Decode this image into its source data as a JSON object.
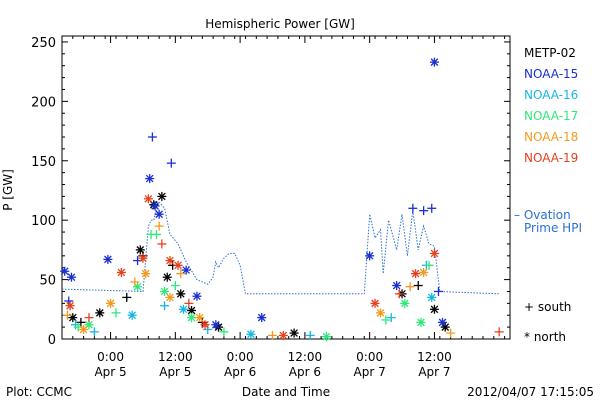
{
  "chart_data": {
    "type": "scatter",
    "title": "Hemispheric Power [GW]",
    "ylabel": "P [GW]",
    "xlabel": "Date and Time",
    "ylim": [
      0,
      255
    ],
    "xlim": [
      "2012-04-04T15:00",
      "2012-04-08T02:00"
    ],
    "yticks": [
      0,
      50,
      100,
      150,
      200,
      250
    ],
    "xticks": [
      {
        "t": "2012-04-05T00:00",
        "time": "0:00",
        "date": "Apr 5"
      },
      {
        "t": "2012-04-05T12:00",
        "time": "12:00",
        "date": "Apr 5"
      },
      {
        "t": "2012-04-06T00:00",
        "time": "0:00",
        "date": "Apr 6"
      },
      {
        "t": "2012-04-06T12:00",
        "time": "12:00",
        "date": "Apr 6"
      },
      {
        "t": "2012-04-07T00:00",
        "time": "0:00",
        "date": "Apr 7"
      },
      {
        "t": "2012-04-07T12:00",
        "time": "12:00",
        "date": "Apr 7"
      }
    ],
    "legend": [
      {
        "name": "METP-02",
        "color": "#000000"
      },
      {
        "name": "NOAA-15",
        "color": "#1a2fd0"
      },
      {
        "name": "NOAA-16",
        "color": "#14b8e0"
      },
      {
        "name": "NOAA-17",
        "color": "#2ee87a"
      },
      {
        "name": "NOAA-18",
        "color": "#f39a1e"
      },
      {
        "name": "NOAA-19",
        "color": "#e8401c"
      }
    ],
    "ovation_label": "– Ovation Prime HPI",
    "ovation_color": "#2b6fd6",
    "markers": [
      {
        "symbol": "+",
        "meaning": "south"
      },
      {
        "symbol": "*",
        "meaning": "north"
      }
    ],
    "ovation": [
      {
        "t": "2012-04-04T15:00",
        "y": 42
      },
      {
        "t": "2012-04-05T06:00",
        "y": 40
      },
      {
        "t": "2012-04-05T07:00",
        "y": 95
      },
      {
        "t": "2012-04-05T07:30",
        "y": 100
      },
      {
        "t": "2012-04-05T08:00",
        "y": 100
      },
      {
        "t": "2012-04-05T08:30",
        "y": 110
      },
      {
        "t": "2012-04-05T09:00",
        "y": 115
      },
      {
        "t": "2012-04-05T10:00",
        "y": 110
      },
      {
        "t": "2012-04-05T11:00",
        "y": 88
      },
      {
        "t": "2012-04-05T12:30",
        "y": 80
      },
      {
        "t": "2012-04-05T14:00",
        "y": 65
      },
      {
        "t": "2012-04-05T16:00",
        "y": 50
      },
      {
        "t": "2012-04-05T18:00",
        "y": 46
      },
      {
        "t": "2012-04-05T19:00",
        "y": 52
      },
      {
        "t": "2012-04-05T19:30",
        "y": 65
      },
      {
        "t": "2012-04-05T20:00",
        "y": 60
      },
      {
        "t": "2012-04-05T21:00",
        "y": 68
      },
      {
        "t": "2012-04-05T22:00",
        "y": 72
      },
      {
        "t": "2012-04-05T23:00",
        "y": 72
      },
      {
        "t": "2012-04-06T00:00",
        "y": 62
      },
      {
        "t": "2012-04-06T00:30",
        "y": 50
      },
      {
        "t": "2012-04-06T01:00",
        "y": 38
      },
      {
        "t": "2012-04-06T23:00",
        "y": 38
      },
      {
        "t": "2012-04-07T00:00",
        "y": 105
      },
      {
        "t": "2012-04-07T01:00",
        "y": 85
      },
      {
        "t": "2012-04-07T02:00",
        "y": 92
      },
      {
        "t": "2012-04-07T02:30",
        "y": 55
      },
      {
        "t": "2012-04-07T03:30",
        "y": 100
      },
      {
        "t": "2012-04-07T05:00",
        "y": 75
      },
      {
        "t": "2012-04-07T06:00",
        "y": 105
      },
      {
        "t": "2012-04-07T07:00",
        "y": 70
      },
      {
        "t": "2012-04-07T08:00",
        "y": 108
      },
      {
        "t": "2012-04-07T09:00",
        "y": 75
      },
      {
        "t": "2012-04-07T10:00",
        "y": 95
      },
      {
        "t": "2012-04-07T11:00",
        "y": 80
      },
      {
        "t": "2012-04-07T12:00",
        "y": 78
      },
      {
        "t": "2012-04-07T13:00",
        "y": 40
      },
      {
        "t": "2012-04-08T00:00",
        "y": 38
      }
    ],
    "points": [
      {
        "sat": "METP-02",
        "m": "*",
        "t": "2012-04-04T17:00",
        "y": 18
      },
      {
        "sat": "METP-02",
        "m": "+",
        "t": "2012-04-04T18:30",
        "y": 14
      },
      {
        "sat": "METP-02",
        "m": "*",
        "t": "2012-04-04T22:00",
        "y": 22
      },
      {
        "sat": "METP-02",
        "m": "+",
        "t": "2012-04-05T03:00",
        "y": 35
      },
      {
        "sat": "METP-02",
        "m": "*",
        "t": "2012-04-05T05:30",
        "y": 75
      },
      {
        "sat": "METP-02",
        "m": "+",
        "t": "2012-04-05T06:00",
        "y": 70
      },
      {
        "sat": "METP-02",
        "m": "*",
        "t": "2012-04-05T08:00",
        "y": 113
      },
      {
        "sat": "METP-02",
        "m": "*",
        "t": "2012-04-05T09:30",
        "y": 120
      },
      {
        "sat": "METP-02",
        "m": "*",
        "t": "2012-04-05T10:30",
        "y": 52
      },
      {
        "sat": "METP-02",
        "m": "+",
        "t": "2012-04-05T11:30",
        "y": 62
      },
      {
        "sat": "METP-02",
        "m": "*",
        "t": "2012-04-05T13:00",
        "y": 38
      },
      {
        "sat": "METP-02",
        "m": "*",
        "t": "2012-04-05T15:00",
        "y": 24
      },
      {
        "sat": "METP-02",
        "m": "+",
        "t": "2012-04-05T17:00",
        "y": 14
      },
      {
        "sat": "METP-02",
        "m": "*",
        "t": "2012-04-05T20:00",
        "y": 10
      },
      {
        "sat": "METP-02",
        "m": "*",
        "t": "2012-04-06T10:00",
        "y": 5
      },
      {
        "sat": "METP-02",
        "m": "*",
        "t": "2012-04-07T06:00",
        "y": 38
      },
      {
        "sat": "METP-02",
        "m": "+",
        "t": "2012-04-07T09:00",
        "y": 45
      },
      {
        "sat": "METP-02",
        "m": "*",
        "t": "2012-04-07T12:00",
        "y": 25
      },
      {
        "sat": "METP-02",
        "m": "*",
        "t": "2012-04-07T14:00",
        "y": 10
      },
      {
        "sat": "NOAA-15",
        "m": "*",
        "t": "2012-04-04T15:30",
        "y": 57
      },
      {
        "sat": "NOAA-15",
        "m": "*",
        "t": "2012-04-04T16:45",
        "y": 52
      },
      {
        "sat": "NOAA-15",
        "m": "+",
        "t": "2012-04-04T16:15",
        "y": 32
      },
      {
        "sat": "NOAA-15",
        "m": "*",
        "t": "2012-04-04T23:30",
        "y": 67
      },
      {
        "sat": "NOAA-15",
        "m": "+",
        "t": "2012-04-05T05:00",
        "y": 66
      },
      {
        "sat": "NOAA-15",
        "m": "*",
        "t": "2012-04-05T07:15",
        "y": 135
      },
      {
        "sat": "NOAA-15",
        "m": "+",
        "t": "2012-04-05T07:45",
        "y": 170
      },
      {
        "sat": "NOAA-15",
        "m": "*",
        "t": "2012-04-05T08:15",
        "y": 112
      },
      {
        "sat": "NOAA-15",
        "m": "*",
        "t": "2012-04-05T09:00",
        "y": 105
      },
      {
        "sat": "NOAA-15",
        "m": "+",
        "t": "2012-04-05T11:15",
        "y": 148
      },
      {
        "sat": "NOAA-15",
        "m": "*",
        "t": "2012-04-05T14:00",
        "y": 58
      },
      {
        "sat": "NOAA-15",
        "m": "*",
        "t": "2012-04-05T16:00",
        "y": 36
      },
      {
        "sat": "NOAA-15",
        "m": "*",
        "t": "2012-04-05T19:30",
        "y": 12
      },
      {
        "sat": "NOAA-15",
        "m": "*",
        "t": "2012-04-06T04:00",
        "y": 18
      },
      {
        "sat": "NOAA-15",
        "m": "*",
        "t": "2012-04-07T00:00",
        "y": 70
      },
      {
        "sat": "NOAA-15",
        "m": "*",
        "t": "2012-04-07T05:00",
        "y": 45
      },
      {
        "sat": "NOAA-15",
        "m": "+",
        "t": "2012-04-07T08:00",
        "y": 110
      },
      {
        "sat": "NOAA-15",
        "m": "+",
        "t": "2012-04-07T10:00",
        "y": 108
      },
      {
        "sat": "NOAA-15",
        "m": "+",
        "t": "2012-04-07T11:30",
        "y": 110
      },
      {
        "sat": "NOAA-15",
        "m": "*",
        "t": "2012-04-07T12:00",
        "y": 233
      },
      {
        "sat": "NOAA-15",
        "m": "+",
        "t": "2012-04-07T12:45",
        "y": 40
      },
      {
        "sat": "NOAA-15",
        "m": "*",
        "t": "2012-04-07T13:30",
        "y": 14
      },
      {
        "sat": "NOAA-16",
        "m": "+",
        "t": "2012-04-04T17:30",
        "y": 12
      },
      {
        "sat": "NOAA-16",
        "m": "+",
        "t": "2012-04-04T21:00",
        "y": 6
      },
      {
        "sat": "NOAA-16",
        "m": "*",
        "t": "2012-04-05T04:00",
        "y": 20
      },
      {
        "sat": "NOAA-16",
        "m": "+",
        "t": "2012-04-05T10:00",
        "y": 28
      },
      {
        "sat": "NOAA-16",
        "m": "*",
        "t": "2012-04-05T13:30",
        "y": 25
      },
      {
        "sat": "NOAA-16",
        "m": "+",
        "t": "2012-04-05T18:00",
        "y": 8
      },
      {
        "sat": "NOAA-16",
        "m": "*",
        "t": "2012-04-06T02:00",
        "y": 4
      },
      {
        "sat": "NOAA-16",
        "m": "+",
        "t": "2012-04-06T13:00",
        "y": 3
      },
      {
        "sat": "NOAA-16",
        "m": "+",
        "t": "2012-04-07T04:00",
        "y": 18
      },
      {
        "sat": "NOAA-16",
        "m": "+",
        "t": "2012-04-07T10:30",
        "y": 62
      },
      {
        "sat": "NOAA-16",
        "m": "*",
        "t": "2012-04-07T11:30",
        "y": 35
      },
      {
        "sat": "NOAA-17",
        "m": "+",
        "t": "2012-04-04T18:00",
        "y": 10
      },
      {
        "sat": "NOAA-17",
        "m": "*",
        "t": "2012-04-04T20:00",
        "y": 12
      },
      {
        "sat": "NOAA-17",
        "m": "+",
        "t": "2012-04-05T01:00",
        "y": 22
      },
      {
        "sat": "NOAA-17",
        "m": "*",
        "t": "2012-04-05T05:00",
        "y": 44
      },
      {
        "sat": "NOAA-17",
        "m": "+",
        "t": "2012-04-05T07:30",
        "y": 88
      },
      {
        "sat": "NOAA-17",
        "m": "+",
        "t": "2012-04-05T08:30",
        "y": 88
      },
      {
        "sat": "NOAA-17",
        "m": "*",
        "t": "2012-04-05T10:00",
        "y": 40
      },
      {
        "sat": "NOAA-17",
        "m": "+",
        "t": "2012-04-05T12:00",
        "y": 45
      },
      {
        "sat": "NOAA-17",
        "m": "*",
        "t": "2012-04-05T15:00",
        "y": 18
      },
      {
        "sat": "NOAA-17",
        "m": "+",
        "t": "2012-04-05T21:00",
        "y": 6
      },
      {
        "sat": "NOAA-17",
        "m": "*",
        "t": "2012-04-06T16:00",
        "y": 2
      },
      {
        "sat": "NOAA-17",
        "m": "+",
        "t": "2012-04-07T03:00",
        "y": 16
      },
      {
        "sat": "NOAA-17",
        "m": "*",
        "t": "2012-04-07T06:30",
        "y": 30
      },
      {
        "sat": "NOAA-17",
        "m": "*",
        "t": "2012-04-07T09:30",
        "y": 14
      },
      {
        "sat": "NOAA-17",
        "m": "+",
        "t": "2012-04-07T11:00",
        "y": 62
      },
      {
        "sat": "NOAA-18",
        "m": "+",
        "t": "2012-04-04T16:00",
        "y": 20
      },
      {
        "sat": "NOAA-18",
        "m": "*",
        "t": "2012-04-04T19:00",
        "y": 8
      },
      {
        "sat": "NOAA-18",
        "m": "*",
        "t": "2012-04-05T00:00",
        "y": 30
      },
      {
        "sat": "NOAA-18",
        "m": "+",
        "t": "2012-04-05T04:30",
        "y": 48
      },
      {
        "sat": "NOAA-18",
        "m": "*",
        "t": "2012-04-05T06:30",
        "y": 55
      },
      {
        "sat": "NOAA-18",
        "m": "+",
        "t": "2012-04-05T09:00",
        "y": 95
      },
      {
        "sat": "NOAA-18",
        "m": "*",
        "t": "2012-04-05T11:00",
        "y": 35
      },
      {
        "sat": "NOAA-18",
        "m": "+",
        "t": "2012-04-05T13:00",
        "y": 55
      },
      {
        "sat": "NOAA-18",
        "m": "*",
        "t": "2012-04-05T16:30",
        "y": 18
      },
      {
        "sat": "NOAA-18",
        "m": "+",
        "t": "2012-04-06T06:00",
        "y": 3
      },
      {
        "sat": "NOAA-18",
        "m": "*",
        "t": "2012-04-07T02:00",
        "y": 22
      },
      {
        "sat": "NOAA-18",
        "m": "+",
        "t": "2012-04-07T07:30",
        "y": 44
      },
      {
        "sat": "NOAA-18",
        "m": "*",
        "t": "2012-04-07T10:00",
        "y": 56
      },
      {
        "sat": "NOAA-18",
        "m": "+",
        "t": "2012-04-07T15:00",
        "y": 5
      },
      {
        "sat": "NOAA-19",
        "m": "*",
        "t": "2012-04-04T16:30",
        "y": 28
      },
      {
        "sat": "NOAA-19",
        "m": "+",
        "t": "2012-04-04T20:00",
        "y": 18
      },
      {
        "sat": "NOAA-19",
        "m": "*",
        "t": "2012-04-05T02:00",
        "y": 56
      },
      {
        "sat": "NOAA-19",
        "m": "*",
        "t": "2012-04-05T06:00",
        "y": 68
      },
      {
        "sat": "NOAA-19",
        "m": "*",
        "t": "2012-04-05T07:00",
        "y": 118
      },
      {
        "sat": "NOAA-19",
        "m": "+",
        "t": "2012-04-05T09:30",
        "y": 80
      },
      {
        "sat": "NOAA-19",
        "m": "*",
        "t": "2012-04-05T11:00",
        "y": 66
      },
      {
        "sat": "NOAA-19",
        "m": "*",
        "t": "2012-04-05T12:30",
        "y": 62
      },
      {
        "sat": "NOAA-19",
        "m": "+",
        "t": "2012-04-05T14:30",
        "y": 30
      },
      {
        "sat": "NOAA-19",
        "m": "*",
        "t": "2012-04-05T17:30",
        "y": 12
      },
      {
        "sat": "NOAA-19",
        "m": "*",
        "t": "2012-04-06T08:00",
        "y": 3
      },
      {
        "sat": "NOAA-19",
        "m": "*",
        "t": "2012-04-07T01:00",
        "y": 30
      },
      {
        "sat": "NOAA-19",
        "m": "+",
        "t": "2012-04-07T05:30",
        "y": 38
      },
      {
        "sat": "NOAA-19",
        "m": "*",
        "t": "2012-04-07T08:30",
        "y": 55
      },
      {
        "sat": "NOAA-19",
        "m": "*",
        "t": "2012-04-07T12:00",
        "y": 72
      },
      {
        "sat": "NOAA-19",
        "m": "+",
        "t": "2012-04-08T00:00",
        "y": 6
      }
    ]
  },
  "footer": {
    "left": "Plot: CCMC",
    "right": "2012/04/07 17:15:05"
  }
}
